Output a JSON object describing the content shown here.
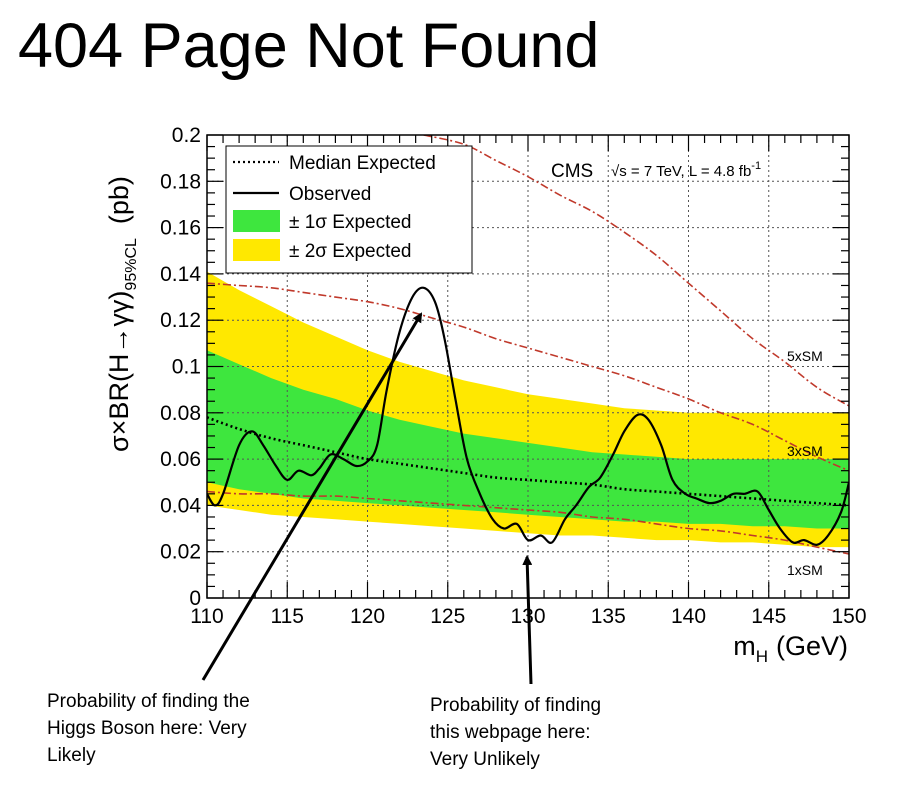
{
  "page": {
    "title": "404 Page Not Found",
    "annotation_left": "Probability of finding the\nHiggs Boson here: Very\nLikely",
    "annotation_right": "Probability of finding\nthis webpage here:\nVery Unlikely"
  },
  "chart_data": {
    "type": "line",
    "experiment_label": "CMS",
    "energy_label": "√s = 7 TeV, L = 4.8 fb",
    "energy_superscript": "-1",
    "xlabel": "m",
    "xlabel_sub": "H",
    "xlabel_unit": "(GeV)",
    "ylabel": "σ×BR(H→γγ)",
    "ylabel_sub": "95%CL",
    "ylabel_unit": "(pb)",
    "xlim": [
      110,
      150
    ],
    "ylim": [
      0,
      0.2
    ],
    "x_ticks": [
      110,
      115,
      120,
      125,
      130,
      135,
      140,
      145,
      150
    ],
    "x_tick_labels": [
      "110",
      "115",
      "120",
      "125",
      "130",
      "135",
      "140",
      "145",
      "150"
    ],
    "y_ticks": [
      0,
      0.02,
      0.04,
      0.06,
      0.08,
      0.1,
      0.12,
      0.14,
      0.16,
      0.18,
      0.2
    ],
    "y_tick_labels": [
      "0",
      "0.02",
      "0.04",
      "0.06",
      "0.08",
      "0.1",
      "0.12",
      "0.14",
      "0.16",
      "0.18",
      "0.2"
    ],
    "grid": true,
    "legend_position": "top-left",
    "legend": [
      {
        "label": "Median Expected",
        "style": "dotted-line"
      },
      {
        "label": "Observed",
        "style": "solid-line"
      },
      {
        "label": "± 1σ Expected",
        "style": "green-box"
      },
      {
        "label": "± 2σ Expected",
        "style": "yellow-box"
      }
    ],
    "colors": {
      "band_1sigma": "#3ee63e",
      "band_2sigma": "#ffe800",
      "sm_lines": "#c0392b",
      "observed": "#000000",
      "expected": "#000000",
      "grid": "#555555"
    },
    "x": [
      110,
      112,
      114,
      116,
      118,
      120,
      122,
      124,
      126,
      128,
      130,
      132,
      134,
      136,
      138,
      140,
      142,
      144,
      146,
      148,
      150
    ],
    "expected": [
      0.078,
      0.073,
      0.069,
      0.066,
      0.063,
      0.06,
      0.058,
      0.056,
      0.054,
      0.052,
      0.051,
      0.05,
      0.049,
      0.047,
      0.046,
      0.045,
      0.044,
      0.043,
      0.042,
      0.041,
      0.04
    ],
    "band_1sigma_low": [
      0.05,
      0.047,
      0.045,
      0.043,
      0.042,
      0.041,
      0.04,
      0.039,
      0.038,
      0.037,
      0.036,
      0.035,
      0.034,
      0.033,
      0.033,
      0.032,
      0.032,
      0.031,
      0.031,
      0.03,
      0.03
    ],
    "band_1sigma_high": [
      0.107,
      0.101,
      0.095,
      0.09,
      0.086,
      0.081,
      0.077,
      0.074,
      0.071,
      0.069,
      0.067,
      0.065,
      0.063,
      0.062,
      0.061,
      0.06,
      0.06,
      0.06,
      0.06,
      0.06,
      0.06
    ],
    "band_2sigma_low": [
      0.04,
      0.038,
      0.036,
      0.035,
      0.034,
      0.033,
      0.032,
      0.031,
      0.03,
      0.029,
      0.028,
      0.027,
      0.027,
      0.026,
      0.025,
      0.025,
      0.024,
      0.024,
      0.023,
      0.022,
      0.022
    ],
    "band_2sigma_high": [
      0.141,
      0.133,
      0.126,
      0.119,
      0.113,
      0.107,
      0.102,
      0.098,
      0.094,
      0.091,
      0.088,
      0.086,
      0.084,
      0.082,
      0.081,
      0.08,
      0.08,
      0.08,
      0.08,
      0.08,
      0.08
    ],
    "observed_x": [
      110,
      110.5,
      111,
      112,
      112.8,
      113.5,
      114.3,
      115,
      115.7,
      116.5,
      117,
      117.7,
      118.5,
      119.3,
      120,
      120.6,
      121.2,
      122,
      122.8,
      123.5,
      124.2,
      124.8,
      125.5,
      126.2,
      127,
      127.8,
      128.5,
      129.3,
      130,
      130.8,
      131.5,
      132.3,
      133,
      133.8,
      134.5,
      135.3,
      136,
      136.8,
      137.5,
      138.3,
      139,
      139.8,
      140.5,
      141.3,
      142,
      142.8,
      143.5,
      144.3,
      145,
      145.7,
      146.5,
      147.2,
      148,
      148.7,
      149.5,
      150
    ],
    "observed_y": [
      0.045,
      0.04,
      0.045,
      0.066,
      0.072,
      0.066,
      0.057,
      0.051,
      0.055,
      0.053,
      0.056,
      0.062,
      0.06,
      0.057,
      0.059,
      0.066,
      0.09,
      0.115,
      0.13,
      0.134,
      0.128,
      0.112,
      0.085,
      0.06,
      0.045,
      0.034,
      0.03,
      0.032,
      0.025,
      0.027,
      0.024,
      0.034,
      0.04,
      0.048,
      0.052,
      0.062,
      0.072,
      0.079,
      0.077,
      0.066,
      0.051,
      0.045,
      0.043,
      0.041,
      0.042,
      0.045,
      0.045,
      0.046,
      0.038,
      0.03,
      0.024,
      0.025,
      0.023,
      0.027,
      0.037,
      0.05
    ],
    "sm_curves": [
      {
        "label": "5xSM",
        "x": [
          123.5,
          126,
          128,
          130,
          132,
          134,
          136,
          138,
          140,
          142,
          144,
          146,
          148,
          150
        ],
        "y": [
          0.2,
          0.196,
          0.189,
          0.182,
          0.174,
          0.167,
          0.158,
          0.148,
          0.136,
          0.124,
          0.112,
          0.102,
          0.091,
          0.083
        ]
      },
      {
        "label": "3xSM",
        "x": [
          110,
          112,
          114,
          116,
          118,
          120,
          122,
          124,
          126,
          128,
          130,
          132,
          134,
          136,
          138,
          140,
          142,
          144,
          146,
          148,
          150
        ],
        "y": [
          0.136,
          0.135,
          0.134,
          0.132,
          0.13,
          0.128,
          0.125,
          0.121,
          0.117,
          0.112,
          0.108,
          0.104,
          0.1,
          0.096,
          0.091,
          0.086,
          0.08,
          0.075,
          0.068,
          0.061,
          0.055
        ]
      },
      {
        "label": "1xSM",
        "x": [
          110,
          112,
          114,
          116,
          118,
          120,
          122,
          124,
          126,
          128,
          130,
          132,
          134,
          136,
          138,
          140,
          142,
          144,
          146,
          148,
          150
        ],
        "y": [
          0.046,
          0.045,
          0.045,
          0.044,
          0.044,
          0.043,
          0.042,
          0.041,
          0.04,
          0.039,
          0.038,
          0.037,
          0.035,
          0.034,
          0.032,
          0.03,
          0.029,
          0.027,
          0.025,
          0.022,
          0.019
        ]
      }
    ]
  }
}
